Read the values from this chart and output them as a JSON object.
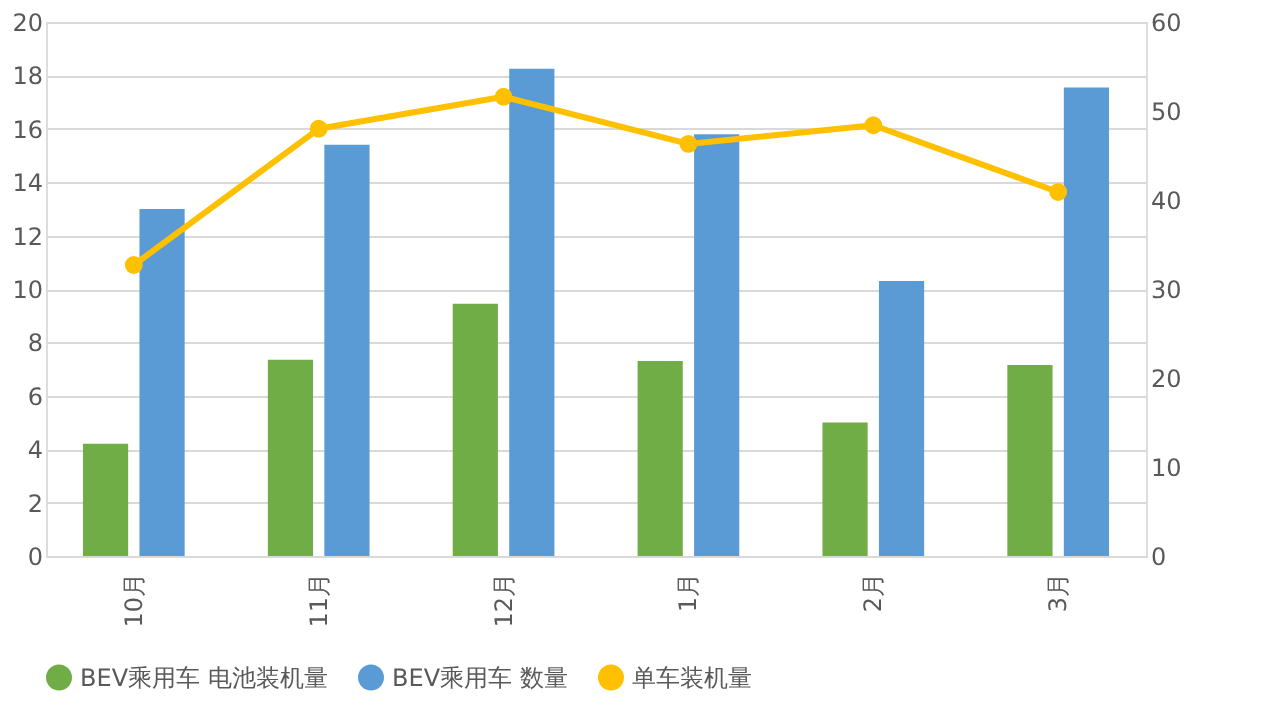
{
  "chart_data": {
    "type": "bar",
    "categories": [
      "10月",
      "11月",
      "12月",
      "1月",
      "2月",
      "3月"
    ],
    "series": [
      {
        "name": "BEV乘用车 电池装机量",
        "color": "#70ad47",
        "values": [
          4.2,
          7.35,
          9.45,
          7.3,
          5.0,
          7.15
        ]
      },
      {
        "name": "BEV乘用车 数量",
        "color": "#5b9bd5",
        "values": [
          13.0,
          15.4,
          18.25,
          15.8,
          10.3,
          17.55
        ]
      },
      {
        "name": "单车装机量",
        "color": "#ffc000",
        "type": "line",
        "axis": "y2",
        "marker": "circle",
        "values": [
          32.7,
          48,
          51.6,
          46.3,
          48.4,
          40.9
        ]
      }
    ],
    "ylim": [
      0,
      20
    ],
    "yticks": [
      0,
      2,
      4,
      6,
      8,
      10,
      12,
      14,
      16,
      18,
      20
    ],
    "y2lim": [
      0,
      60
    ],
    "y2ticks": [
      0,
      10,
      20,
      30,
      40,
      50,
      60
    ],
    "grid": "y",
    "legend": "bottom"
  }
}
